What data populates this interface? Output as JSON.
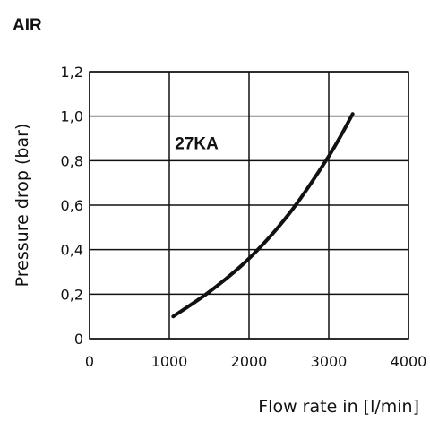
{
  "heading": "AIR",
  "chart_data": {
    "type": "line",
    "xlabel": "Flow rate in [l/min]",
    "ylabel": "Pressure drop (bar)",
    "xlim": [
      0,
      4000
    ],
    "ylim": [
      0,
      1.2
    ],
    "x_ticks": [
      {
        "v": 0,
        "label": "0"
      },
      {
        "v": 1000,
        "label": "1000"
      },
      {
        "v": 2000,
        "label": "2000"
      },
      {
        "v": 3000,
        "label": "3000"
      },
      {
        "v": 4000,
        "label": "4000"
      }
    ],
    "y_ticks": [
      {
        "v": 0,
        "label": "0"
      },
      {
        "v": 0.2,
        "label": "0,2"
      },
      {
        "v": 0.4,
        "label": "0,4"
      },
      {
        "v": 0.6,
        "label": "0,6"
      },
      {
        "v": 0.8,
        "label": "0,8"
      },
      {
        "v": 1.0,
        "label": "1,0"
      },
      {
        "v": 1.2,
        "label": "1,2"
      }
    ],
    "grid": true,
    "series": [
      {
        "name": "27KA",
        "color": "#111111",
        "x": [
          1050,
          1500,
          2000,
          2500,
          3000,
          3300
        ],
        "y": [
          0.1,
          0.21,
          0.36,
          0.56,
          0.82,
          1.01
        ]
      }
    ]
  }
}
